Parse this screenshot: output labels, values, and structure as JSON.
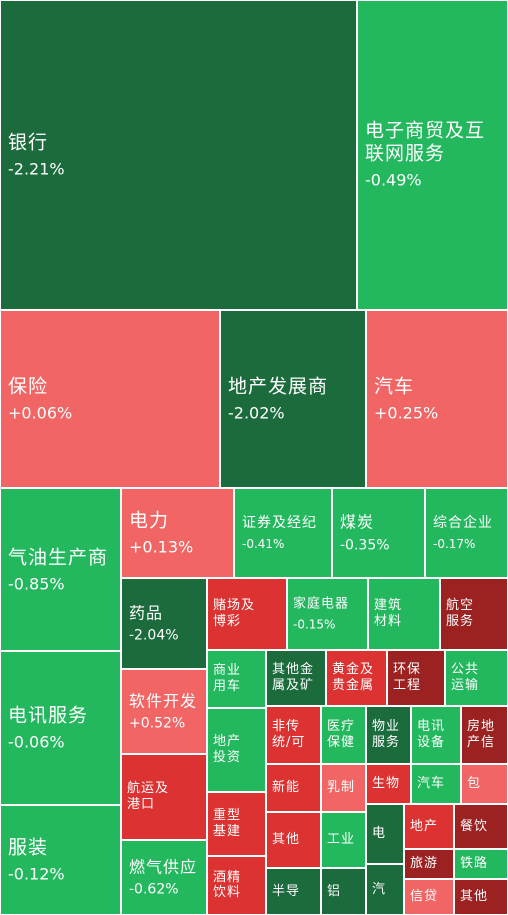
{
  "colors": {
    "deep_green": "#1b6b3d",
    "green": "#23b85e",
    "light_red": "#f26565",
    "red": "#dc3232",
    "dark_red": "#9c2121"
  },
  "sectors": [
    {
      "name": "银行",
      "change": "-2.21%",
      "color": "deep_green"
    },
    {
      "name": "电子商贸及互联网服务",
      "change": "-0.49%",
      "color": "green"
    },
    {
      "name": "保险",
      "change": "+0.06%",
      "color": "light_red"
    },
    {
      "name": "地产发展商",
      "change": "-2.02%",
      "color": "deep_green"
    },
    {
      "name": "汽车",
      "change": "+0.25%",
      "color": "light_red"
    },
    {
      "name": "气油生产商",
      "change": "-0.85%",
      "color": "green"
    },
    {
      "name": "电力",
      "change": "+0.13%",
      "color": "light_red"
    },
    {
      "name": "证券及经纪",
      "change": "-0.41%",
      "color": "green"
    },
    {
      "name": "煤炭",
      "change": "-0.35%",
      "color": "green"
    },
    {
      "name": "综合企业",
      "change": "-0.17%",
      "color": "green"
    },
    {
      "name": "药品",
      "change": "-2.04%",
      "color": "deep_green"
    },
    {
      "name": "赌场及博彩",
      "change": "",
      "color": "red"
    },
    {
      "name": "家庭电器",
      "change": "-0.15%",
      "color": "green"
    },
    {
      "name": "建筑材料",
      "change": "",
      "color": "green"
    },
    {
      "name": "航空服务",
      "change": "",
      "color": "dark_red"
    },
    {
      "name": "电讯服务",
      "change": "-0.06%",
      "color": "green"
    },
    {
      "name": "软件开发",
      "change": "+0.52%",
      "color": "light_red"
    },
    {
      "name": "商业用车",
      "change": "",
      "color": "green"
    },
    {
      "name": "其他金属及矿",
      "change": "",
      "color": "deep_green"
    },
    {
      "name": "黄金及贵金属",
      "change": "",
      "color": "red"
    },
    {
      "name": "环保工程",
      "change": "",
      "color": "dark_red"
    },
    {
      "name": "公共运输",
      "change": "",
      "color": "green"
    },
    {
      "name": "非传统/可",
      "change": "",
      "color": "red"
    },
    {
      "name": "医疗保健",
      "change": "",
      "color": "green"
    },
    {
      "name": "物业服务",
      "change": "",
      "color": "deep_green"
    },
    {
      "name": "电讯设备",
      "change": "",
      "color": "green"
    },
    {
      "name": "房地产信",
      "change": "",
      "color": "dark_red"
    },
    {
      "name": "地产投资",
      "change": "",
      "color": "green"
    },
    {
      "name": "航运及港口",
      "change": "",
      "color": "red"
    },
    {
      "name": "新能",
      "change": "",
      "color": "red"
    },
    {
      "name": "乳制",
      "change": "",
      "color": "light_red"
    },
    {
      "name": "生物",
      "change": "",
      "color": "red"
    },
    {
      "name": "汽车",
      "change": "",
      "color": "green"
    },
    {
      "name": "包",
      "change": "",
      "color": "light_red"
    },
    {
      "name": "重型基建",
      "change": "",
      "color": "red"
    },
    {
      "name": "其他",
      "change": "",
      "color": "red"
    },
    {
      "name": "工业",
      "change": "",
      "color": "green"
    },
    {
      "name": "电",
      "change": "",
      "color": "deep_green"
    },
    {
      "name": "地产",
      "change": "",
      "color": "red"
    },
    {
      "name": "餐饮",
      "change": "",
      "color": "dark_red"
    },
    {
      "name": "服装",
      "change": "-0.12%",
      "color": "green"
    },
    {
      "name": "燃气供应",
      "change": "-0.62%",
      "color": "green"
    },
    {
      "name": "旅游",
      "change": "",
      "color": "dark_red"
    },
    {
      "name": "铁路",
      "change": "",
      "color": "green"
    },
    {
      "name": "酒精饮料",
      "change": "",
      "color": "red"
    },
    {
      "name": "半导",
      "change": "",
      "color": "deep_green"
    },
    {
      "name": "铝",
      "change": "",
      "color": "deep_green"
    },
    {
      "name": "汽",
      "change": "",
      "color": "deep_green"
    },
    {
      "name": "信贷",
      "change": "",
      "color": "light_red"
    },
    {
      "name": "其他",
      "change": "",
      "color": "dark_red"
    }
  ]
}
